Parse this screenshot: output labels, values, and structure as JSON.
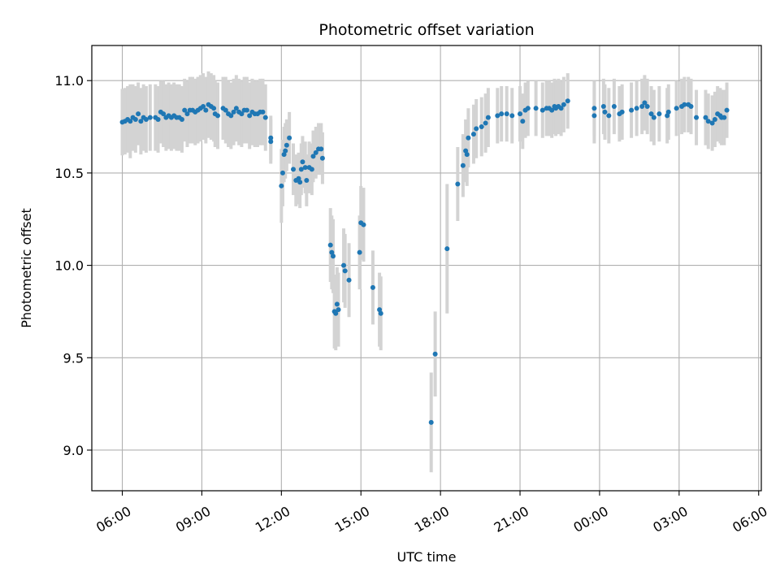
{
  "chart_data": {
    "type": "scatter",
    "title": "Photometric offset variation",
    "xlabel": "UTC time",
    "ylabel": "Photometric offset",
    "x_tick_labels": [
      "06:00",
      "09:00",
      "12:00",
      "15:00",
      "18:00",
      "21:00",
      "00:00",
      "03:00",
      "06:00"
    ],
    "x_ticks_hours": [
      6,
      9,
      12,
      15,
      18,
      21,
      24,
      27,
      30
    ],
    "xlim_hours": [
      4.85,
      30.1
    ],
    "y_ticks": [
      9.0,
      9.5,
      10.0,
      10.5,
      11.0
    ],
    "y_tick_labels": [
      "9.0",
      "9.5",
      "10.0",
      "10.5",
      "11.0"
    ],
    "ylim": [
      8.78,
      11.19
    ],
    "grid": true,
    "marker_color": "#1f77b4",
    "errorbar_color": "#d3d3d3",
    "series": [
      {
        "points": [
          [
            6.0,
            10.775,
            0.18
          ],
          [
            6.1,
            10.78,
            0.18
          ],
          [
            6.2,
            10.79,
            0.18
          ],
          [
            6.3,
            10.78,
            0.2
          ],
          [
            6.4,
            10.8,
            0.18
          ],
          [
            6.5,
            10.79,
            0.18
          ],
          [
            6.6,
            10.82,
            0.17
          ],
          [
            6.7,
            10.78,
            0.18
          ],
          [
            6.8,
            10.8,
            0.18
          ],
          [
            6.9,
            10.79,
            0.18
          ],
          [
            7.05,
            10.8,
            0.18
          ],
          [
            7.25,
            10.8,
            0.18
          ],
          [
            7.35,
            10.79,
            0.18
          ],
          [
            7.45,
            10.83,
            0.17
          ],
          [
            7.55,
            10.82,
            0.18
          ],
          [
            7.65,
            10.8,
            0.18
          ],
          [
            7.75,
            10.81,
            0.18
          ],
          [
            7.85,
            10.8,
            0.18
          ],
          [
            7.95,
            10.81,
            0.18
          ],
          [
            8.05,
            10.8,
            0.18
          ],
          [
            8.15,
            10.8,
            0.18
          ],
          [
            8.25,
            10.79,
            0.18
          ],
          [
            8.35,
            10.84,
            0.17
          ],
          [
            8.45,
            10.82,
            0.18
          ],
          [
            8.55,
            10.84,
            0.18
          ],
          [
            8.65,
            10.84,
            0.18
          ],
          [
            8.75,
            10.83,
            0.18
          ],
          [
            8.85,
            10.84,
            0.18
          ],
          [
            8.95,
            10.85,
            0.18
          ],
          [
            9.05,
            10.86,
            0.18
          ],
          [
            9.15,
            10.84,
            0.18
          ],
          [
            9.25,
            10.87,
            0.18
          ],
          [
            9.35,
            10.86,
            0.18
          ],
          [
            9.45,
            10.85,
            0.18
          ],
          [
            9.5,
            10.82,
            0.18
          ],
          [
            9.6,
            10.81,
            0.18
          ],
          [
            9.8,
            10.85,
            0.17
          ],
          [
            9.9,
            10.84,
            0.18
          ],
          [
            10.0,
            10.82,
            0.18
          ],
          [
            10.1,
            10.81,
            0.18
          ],
          [
            10.2,
            10.83,
            0.18
          ],
          [
            10.3,
            10.85,
            0.18
          ],
          [
            10.4,
            10.83,
            0.18
          ],
          [
            10.5,
            10.82,
            0.18
          ],
          [
            10.6,
            10.84,
            0.18
          ],
          [
            10.7,
            10.84,
            0.18
          ],
          [
            10.8,
            10.81,
            0.18
          ],
          [
            10.9,
            10.83,
            0.18
          ],
          [
            11.0,
            10.82,
            0.18
          ],
          [
            11.1,
            10.82,
            0.18
          ],
          [
            11.2,
            10.83,
            0.18
          ],
          [
            11.3,
            10.83,
            0.18
          ],
          [
            11.4,
            10.8,
            0.18
          ],
          [
            11.6,
            10.69,
            0.12
          ],
          [
            11.6,
            10.67,
            0.12
          ],
          [
            12.0,
            10.43,
            0.2
          ],
          [
            12.05,
            10.5,
            0.18
          ],
          [
            12.1,
            10.6,
            0.15
          ],
          [
            12.15,
            10.62,
            0.15
          ],
          [
            12.2,
            10.65,
            0.14
          ],
          [
            12.3,
            10.69,
            0.14
          ],
          [
            12.45,
            10.52,
            0.14
          ],
          [
            12.55,
            10.46,
            0.14
          ],
          [
            12.65,
            10.47,
            0.14
          ],
          [
            12.7,
            10.45,
            0.14
          ],
          [
            12.75,
            10.52,
            0.14
          ],
          [
            12.8,
            10.56,
            0.14
          ],
          [
            12.9,
            10.53,
            0.14
          ],
          [
            12.95,
            10.46,
            0.14
          ],
          [
            13.05,
            10.53,
            0.14
          ],
          [
            13.15,
            10.52,
            0.14
          ],
          [
            13.2,
            10.59,
            0.14
          ],
          [
            13.3,
            10.61,
            0.14
          ],
          [
            13.4,
            10.63,
            0.14
          ],
          [
            13.55,
            10.58,
            0.14
          ],
          [
            13.5,
            10.63,
            0.14
          ],
          [
            13.85,
            10.11,
            0.2
          ],
          [
            13.9,
            10.07,
            0.2
          ],
          [
            13.95,
            10.05,
            0.2
          ],
          [
            14.0,
            9.75,
            0.2
          ],
          [
            14.05,
            9.74,
            0.2
          ],
          [
            14.1,
            9.79,
            0.2
          ],
          [
            14.15,
            9.76,
            0.2
          ],
          [
            14.35,
            10.0,
            0.2
          ],
          [
            14.4,
            9.97,
            0.2
          ],
          [
            14.55,
            9.92,
            0.2
          ],
          [
            14.95,
            10.07,
            0.2
          ],
          [
            15.0,
            10.23,
            0.2
          ],
          [
            15.1,
            10.22,
            0.2
          ],
          [
            15.45,
            9.88,
            0.2
          ],
          [
            15.7,
            9.76,
            0.2
          ],
          [
            15.75,
            9.74,
            0.2
          ],
          [
            17.65,
            9.15,
            0.27
          ],
          [
            17.8,
            9.52,
            0.23
          ],
          [
            18.25,
            10.09,
            0.35
          ],
          [
            18.65,
            10.44,
            0.2
          ],
          [
            18.85,
            10.54,
            0.17
          ],
          [
            18.95,
            10.62,
            0.17
          ],
          [
            19.0,
            10.6,
            0.17
          ],
          [
            19.05,
            10.69,
            0.16
          ],
          [
            19.25,
            10.71,
            0.16
          ],
          [
            19.35,
            10.74,
            0.16
          ],
          [
            19.55,
            10.75,
            0.16
          ],
          [
            19.7,
            10.77,
            0.16
          ],
          [
            19.8,
            10.8,
            0.16
          ],
          [
            20.15,
            10.81,
            0.15
          ],
          [
            20.3,
            10.82,
            0.15
          ],
          [
            20.5,
            10.82,
            0.15
          ],
          [
            20.7,
            10.81,
            0.15
          ],
          [
            21.0,
            10.82,
            0.15
          ],
          [
            21.1,
            10.78,
            0.15
          ],
          [
            21.2,
            10.84,
            0.15
          ],
          [
            21.3,
            10.85,
            0.15
          ],
          [
            21.6,
            10.85,
            0.15
          ],
          [
            21.85,
            10.84,
            0.15
          ],
          [
            22.0,
            10.85,
            0.15
          ],
          [
            22.1,
            10.85,
            0.15
          ],
          [
            22.2,
            10.84,
            0.15
          ],
          [
            22.3,
            10.86,
            0.15
          ],
          [
            22.35,
            10.85,
            0.15
          ],
          [
            22.45,
            10.86,
            0.15
          ],
          [
            22.55,
            10.85,
            0.15
          ],
          [
            22.65,
            10.87,
            0.15
          ],
          [
            22.8,
            10.89,
            0.15
          ],
          [
            23.8,
            10.85,
            0.15
          ],
          [
            23.8,
            10.81,
            0.15
          ],
          [
            24.15,
            10.86,
            0.15
          ],
          [
            24.2,
            10.83,
            0.15
          ],
          [
            24.35,
            10.81,
            0.15
          ],
          [
            24.55,
            10.86,
            0.15
          ],
          [
            24.75,
            10.82,
            0.15
          ],
          [
            24.85,
            10.83,
            0.15
          ],
          [
            25.2,
            10.84,
            0.15
          ],
          [
            25.4,
            10.85,
            0.15
          ],
          [
            25.6,
            10.86,
            0.15
          ],
          [
            25.7,
            10.88,
            0.15
          ],
          [
            25.8,
            10.86,
            0.15
          ],
          [
            25.95,
            10.82,
            0.15
          ],
          [
            26.05,
            10.8,
            0.15
          ],
          [
            26.25,
            10.82,
            0.15
          ],
          [
            26.55,
            10.81,
            0.15
          ],
          [
            26.6,
            10.83,
            0.15
          ],
          [
            26.9,
            10.85,
            0.15
          ],
          [
            27.1,
            10.86,
            0.15
          ],
          [
            27.2,
            10.87,
            0.15
          ],
          [
            27.35,
            10.87,
            0.15
          ],
          [
            27.45,
            10.86,
            0.15
          ],
          [
            27.65,
            10.8,
            0.15
          ],
          [
            28.0,
            10.8,
            0.15
          ],
          [
            28.1,
            10.78,
            0.15
          ],
          [
            28.25,
            10.77,
            0.15
          ],
          [
            28.35,
            10.79,
            0.15
          ],
          [
            28.45,
            10.82,
            0.15
          ],
          [
            28.55,
            10.81,
            0.15
          ],
          [
            28.6,
            10.8,
            0.15
          ],
          [
            28.7,
            10.8,
            0.15
          ],
          [
            28.8,
            10.84,
            0.15
          ]
        ]
      }
    ]
  }
}
